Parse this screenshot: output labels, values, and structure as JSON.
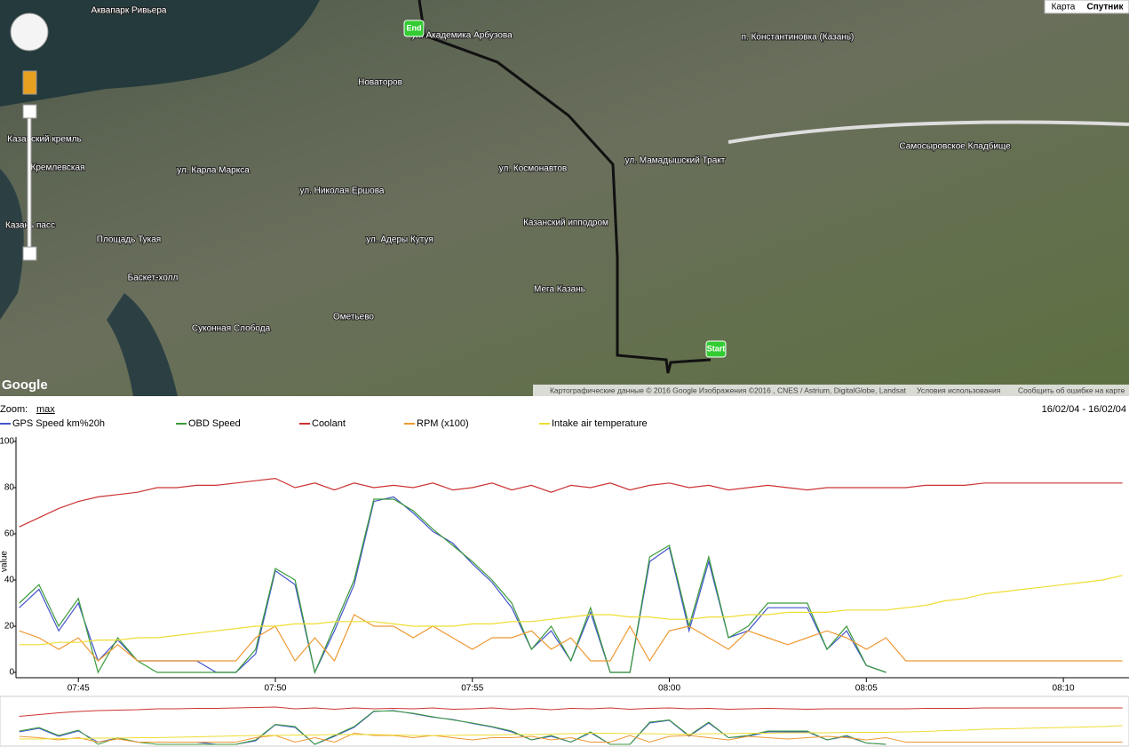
{
  "map": {
    "buttons": [
      "Карта",
      "Спутник"
    ],
    "logo": "Google",
    "attribution": "Картографические данные © 2016 Google Изображения ©2016 , CNES / Astrium, DigitalGlobe, Landsat",
    "terms": "Условия использования",
    "report": "Сообщить об ошибке на карте",
    "markers": [
      "Start",
      "End"
    ],
    "labels": [
      "Аквапарк Ривьера",
      "ул. Академика Арбузова",
      "п. Константиновка (Казань)",
      "Новаторов",
      "Казанский кремль",
      "Кремлевская",
      "ул. Карла Маркса",
      "ул. Николая Ершова",
      "Казанский ипподром",
      "ул. Мамадышский Тракт",
      "Самосыровское Кладбище",
      "Площадь Тукая",
      "Баскет-холл",
      "Мега Казань",
      "Ометьево",
      "Суконная Слобода",
      "ул. Космонавтов",
      "ул. Адеры Кутуя",
      "Казань пасс"
    ]
  },
  "chart_data": {
    "type": "line",
    "zoom_label": "Zoom:",
    "zoom_value": "max",
    "date_range": "16/02/04 - 16/02/04",
    "ylabel": "value",
    "x": [
      "07:43:30",
      "07:44:00",
      "07:44:30",
      "07:45:00",
      "07:45:30",
      "07:46:00",
      "07:46:30",
      "07:47:00",
      "07:47:30",
      "07:48:00",
      "07:48:30",
      "07:49:00",
      "07:49:30",
      "07:50:00",
      "07:50:30",
      "07:51:00",
      "07:51:30",
      "07:52:00",
      "07:52:30",
      "07:53:00",
      "07:53:30",
      "07:54:00",
      "07:54:30",
      "07:55:00",
      "07:55:30",
      "07:56:00",
      "07:56:30",
      "07:57:00",
      "07:57:30",
      "07:58:00",
      "07:58:30",
      "07:59:00",
      "07:59:30",
      "08:00:00",
      "08:00:30",
      "08:01:00",
      "08:01:30",
      "08:02:00",
      "08:02:30",
      "08:03:00",
      "08:03:30",
      "08:04:00",
      "08:04:30",
      "08:05:00",
      "08:05:30",
      "08:06:00",
      "08:06:30",
      "08:07:00",
      "08:07:30",
      "08:08:00",
      "08:08:30",
      "08:09:00",
      "08:09:30",
      "08:10:00",
      "08:10:30",
      "08:11:00",
      "08:11:30"
    ],
    "xlim": [
      "07:43:25",
      "08:11:40"
    ],
    "xticks": [
      "07:45",
      "07:50",
      "07:55",
      "08:00",
      "08:05",
      "08:10"
    ],
    "ylim": [
      0,
      100
    ],
    "yticks": [
      0,
      20,
      40,
      60,
      80,
      100
    ],
    "series": [
      {
        "name": "GPS Speed km%20h",
        "color": "#4455cc",
        "values": [
          28,
          36,
          18,
          30,
          5,
          14,
          5,
          5,
          5,
          5,
          0,
          0,
          8,
          44,
          38,
          0,
          18,
          38,
          74,
          76,
          69,
          61,
          56,
          47,
          39,
          28,
          10,
          18,
          5,
          26,
          0,
          0,
          48,
          54,
          18,
          48,
          15,
          18,
          28,
          28,
          28,
          10,
          18,
          3,
          0,
          null,
          null,
          null,
          null,
          null,
          null,
          null,
          null,
          null,
          null,
          null,
          null
        ]
      },
      {
        "name": "OBD Speed",
        "color": "#3a9a3a",
        "values": [
          30,
          38,
          20,
          32,
          0,
          15,
          5,
          0,
          0,
          0,
          0,
          0,
          10,
          45,
          40,
          0,
          20,
          40,
          75,
          75,
          70,
          62,
          55,
          48,
          40,
          30,
          10,
          20,
          5,
          28,
          0,
          0,
          50,
          55,
          20,
          50,
          15,
          20,
          30,
          30,
          30,
          10,
          20,
          3,
          0,
          null,
          null,
          null,
          null,
          null,
          null,
          null,
          null,
          null,
          null,
          null,
          null
        ]
      },
      {
        "name": "Coolant",
        "color": "#cc3333",
        "values": [
          63,
          67,
          71,
          74,
          76,
          77,
          78,
          80,
          80,
          81,
          81,
          82,
          83,
          84,
          80,
          82,
          79,
          82,
          80,
          81,
          80,
          82,
          79,
          80,
          82,
          79,
          81,
          78,
          81,
          80,
          82,
          79,
          81,
          82,
          80,
          81,
          79,
          80,
          81,
          80,
          79,
          80,
          80,
          80,
          80,
          80,
          81,
          81,
          81,
          82,
          82,
          82,
          82,
          82,
          82,
          82,
          82
        ]
      },
      {
        "name": "RPM (x100)",
        "color": "#ee9933",
        "values": [
          18,
          15,
          10,
          15,
          5,
          12,
          5,
          5,
          5,
          5,
          5,
          5,
          15,
          20,
          5,
          15,
          5,
          25,
          20,
          20,
          15,
          20,
          15,
          10,
          15,
          15,
          18,
          10,
          15,
          5,
          5,
          20,
          5,
          18,
          20,
          15,
          10,
          18,
          15,
          12,
          15,
          18,
          15,
          10,
          15,
          5,
          5,
          5,
          5,
          5,
          5,
          5,
          5,
          5,
          5,
          5,
          5
        ]
      },
      {
        "name": "Intake air temperature",
        "color": "#eedd33",
        "values": [
          12,
          12,
          13,
          13,
          14,
          14,
          15,
          15,
          16,
          17,
          18,
          19,
          20,
          20,
          21,
          21,
          22,
          22,
          22,
          21,
          20,
          20,
          20,
          21,
          21,
          22,
          22,
          23,
          24,
          25,
          25,
          24,
          24,
          23,
          23,
          24,
          24,
          25,
          25,
          26,
          26,
          26,
          27,
          27,
          27,
          28,
          29,
          31,
          32,
          34,
          35,
          36,
          37,
          38,
          39,
          40,
          42
        ]
      }
    ]
  }
}
